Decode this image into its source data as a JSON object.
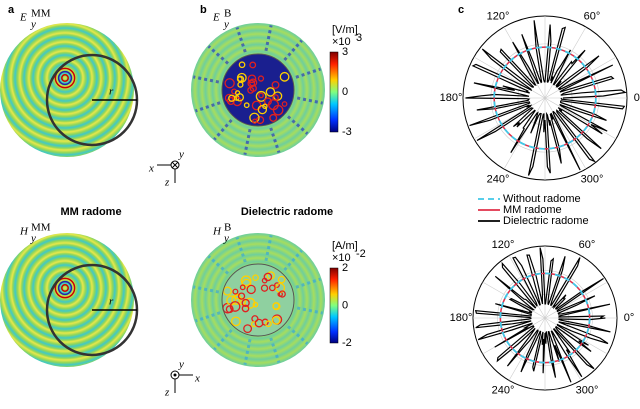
{
  "panel_labels": [
    "a",
    "b",
    "c"
  ],
  "captions": [
    "MM radome",
    "Dielectric radome"
  ],
  "field_labels": [
    {
      "main": "E",
      "sub": "y",
      "sup": "MM"
    },
    {
      "main": "E",
      "sub": "y",
      "sup": "B"
    },
    {
      "main": "H",
      "sub": "y",
      "sup": "MM"
    },
    {
      "main": "H",
      "sub": "y",
      "sup": "B"
    }
  ],
  "radius_label": "r",
  "axes": [
    {
      "y": "y",
      "x": "x",
      "z": "z"
    },
    {
      "y": "y",
      "x": "x",
      "z": "z"
    }
  ],
  "colorbars": [
    {
      "unit": "[V/m]",
      "scale": "×10",
      "exp": "3",
      "ticks": [
        "3",
        "0",
        "-3"
      ]
    },
    {
      "unit": "[A/m]",
      "scale": "×10",
      "exp": "-2",
      "ticks": [
        "2",
        "0",
        "-2"
      ]
    }
  ],
  "polar": [
    {
      "angle_labels": [
        "120°",
        "60°",
        "180°",
        "0°",
        "240°",
        "300°"
      ]
    },
    {
      "angle_labels": [
        "120°",
        "60°",
        "180°",
        "0°",
        "240°",
        "300°"
      ]
    }
  ],
  "legend": [
    "Without radome",
    "MM radome",
    "Dielectric radome"
  ]
}
